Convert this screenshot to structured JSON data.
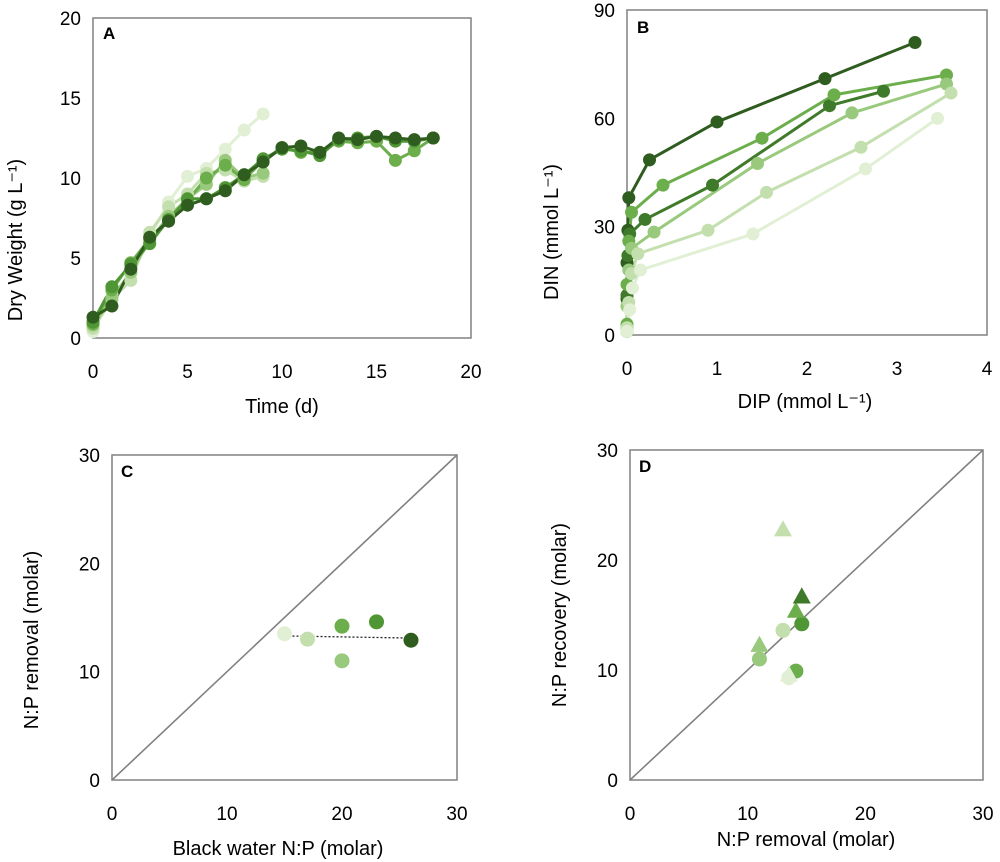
{
  "figure": {
    "palette": [
      "#2f5c1f",
      "#3f7a2a",
      "#4f9635",
      "#6dae4c",
      "#98c97c",
      "#c3dfae",
      "#e1f0d4"
    ]
  },
  "chart_data": [
    {
      "id": "A",
      "type": "line",
      "panel_label": "A",
      "xlabel": "Time (d)",
      "ylabel": "Dry Weight (g L⁻¹)",
      "xlim": [
        0,
        20
      ],
      "ylim": [
        0,
        20
      ],
      "xticks": [
        0,
        5,
        10,
        15,
        20
      ],
      "yticks": [
        0,
        5,
        10,
        15,
        20
      ],
      "series": [
        {
          "name": "series-1",
          "color": "#e1f0d4",
          "x": [
            0,
            1,
            2,
            3,
            4,
            5,
            6,
            7,
            8,
            9
          ],
          "y": [
            0.4,
            2.7,
            4.0,
            6.3,
            8.5,
            10.1,
            10.6,
            11.8,
            13.0,
            14.0
          ]
        },
        {
          "name": "series-2",
          "color": "#c3dfae",
          "x": [
            0,
            1,
            2,
            3,
            4,
            5,
            6,
            7,
            8,
            9
          ],
          "y": [
            0.6,
            2.4,
            3.6,
            6.6,
            8.2,
            9.0,
            10.3,
            10.5,
            9.8,
            10.1
          ]
        },
        {
          "name": "series-3",
          "color": "#98c97c",
          "x": [
            0,
            1,
            2,
            3,
            4,
            5,
            6,
            7,
            8,
            9
          ],
          "y": [
            0.8,
            2.5,
            4.1,
            6.1,
            7.6,
            8.7,
            9.6,
            11.1,
            10.0,
            10.3
          ]
        },
        {
          "name": "series-4",
          "color": "#6dae4c",
          "x": [
            0,
            1,
            2,
            3,
            4,
            5,
            6,
            7,
            8,
            9,
            10,
            11,
            12,
            13,
            14,
            15,
            16,
            17,
            18
          ],
          "y": [
            0.9,
            3.0,
            4.7,
            6.2,
            7.4,
            8.6,
            10.0,
            10.8,
            9.9,
            11.1,
            11.9,
            11.6,
            11.6,
            12.3,
            12.2,
            12.3,
            11.1,
            11.7,
            12.5
          ]
        },
        {
          "name": "series-5",
          "color": "#4f9635",
          "x": [
            0,
            1,
            2,
            3,
            4,
            5,
            6,
            7,
            8,
            9,
            10,
            11,
            12,
            13,
            14,
            15,
            16,
            17,
            18
          ],
          "y": [
            1.0,
            3.2,
            4.6,
            5.9,
            7.4,
            8.7,
            8.7,
            9.4,
            10.2,
            11.2,
            11.8,
            11.7,
            11.4,
            12.4,
            12.5,
            12.6,
            12.3,
            12.3,
            12.5
          ]
        },
        {
          "name": "series-6",
          "color": "#2f5c1f",
          "x": [
            0,
            1,
            2,
            3,
            4,
            5,
            6,
            7,
            8,
            9,
            10,
            11,
            12,
            13,
            14,
            15,
            16,
            17,
            18
          ],
          "y": [
            1.3,
            2.0,
            4.3,
            6.3,
            7.3,
            8.3,
            8.7,
            9.2,
            10.2,
            11.0,
            11.9,
            12.0,
            11.6,
            12.5,
            12.4,
            12.6,
            12.5,
            12.4,
            12.5
          ]
        }
      ]
    },
    {
      "id": "B",
      "type": "line",
      "panel_label": "B",
      "xlabel": "DIP (mmol L⁻¹)",
      "ylabel": "DIN (mmol L⁻¹)",
      "xlim": [
        0,
        4
      ],
      "ylim": [
        0,
        90
      ],
      "xticks": [
        0,
        1,
        2,
        3,
        4
      ],
      "yticks": [
        0,
        30,
        60,
        90
      ],
      "series": [
        {
          "name": "series-1",
          "color": "#2f5c1f",
          "x": [
            3.2,
            2.2,
            1.0,
            0.25,
            0.02,
            0.01,
            0.0,
            0.0,
            0.0
          ],
          "y": [
            81,
            71,
            59,
            48.5,
            38,
            29,
            20,
            10,
            1
          ]
        },
        {
          "name": "series-2",
          "color": "#3f7a2a",
          "x": [
            2.85,
            2.25,
            0.95,
            0.2,
            0.03,
            0.01,
            0.0,
            0.0
          ],
          "y": [
            67.5,
            63.5,
            41.5,
            32,
            28,
            22,
            11,
            2
          ]
        },
        {
          "name": "series-3",
          "color": "#6dae4c",
          "x": [
            3.55,
            2.3,
            1.5,
            0.4,
            0.05,
            0.02,
            0.0,
            0.0
          ],
          "y": [
            72,
            66.5,
            54.5,
            41.5,
            34,
            26,
            14,
            3
          ]
        },
        {
          "name": "series-4",
          "color": "#98c97c",
          "x": [
            3.55,
            2.5,
            1.45,
            0.3,
            0.05,
            0.02,
            0.0,
            0.0
          ],
          "y": [
            69.5,
            61.5,
            47.5,
            28.5,
            24,
            18,
            8,
            1
          ]
        },
        {
          "name": "series-5",
          "color": "#c3dfae",
          "x": [
            3.6,
            2.6,
            1.55,
            0.9,
            0.12,
            0.05,
            0.02,
            0.0
          ],
          "y": [
            67,
            52,
            39.5,
            29,
            22.5,
            17,
            9,
            2
          ]
        },
        {
          "name": "series-6",
          "color": "#e1f0d4",
          "x": [
            3.45,
            2.65,
            1.4,
            0.15,
            0.06,
            0.03,
            0.0
          ],
          "y": [
            60,
            46,
            28,
            18,
            13,
            7,
            1
          ]
        }
      ]
    },
    {
      "id": "C",
      "type": "scatter",
      "panel_label": "C",
      "xlabel": "Black water N:P (molar)",
      "ylabel": "N:P removal (molar)",
      "xlim": [
        0,
        30
      ],
      "ylim": [
        0,
        30
      ],
      "xticks": [
        0,
        10,
        20,
        30
      ],
      "yticks": [
        0,
        10,
        20,
        30
      ],
      "reference_line": "1:1",
      "trend_line": {
        "x": [
          15,
          26
        ],
        "y": [
          13.3,
          13.1
        ],
        "style": "dotted"
      },
      "points": [
        {
          "x": 15.0,
          "y": 13.5,
          "color": "#e1f0d4"
        },
        {
          "x": 17.0,
          "y": 13.0,
          "color": "#c3dfae"
        },
        {
          "x": 20.0,
          "y": 11.0,
          "color": "#98c97c"
        },
        {
          "x": 20.0,
          "y": 14.2,
          "color": "#6dae4c"
        },
        {
          "x": 23.0,
          "y": 14.6,
          "color": "#4f9635"
        },
        {
          "x": 26.0,
          "y": 12.9,
          "color": "#2f5c1f"
        }
      ]
    },
    {
      "id": "D",
      "type": "scatter",
      "panel_label": "D",
      "xlabel": "N:P removal (molar)",
      "ylabel": "N:P recovery (molar)",
      "xlim": [
        0,
        30
      ],
      "ylim": [
        0,
        30
      ],
      "xticks": [
        0,
        10,
        20,
        30
      ],
      "yticks": [
        0,
        10,
        20,
        30
      ],
      "reference_line": "1:1",
      "points": [
        {
          "x": 13.5,
          "y": 9.3,
          "color": "#e1f0d4",
          "shape": "circle"
        },
        {
          "x": 13.0,
          "y": 13.6,
          "color": "#c3dfae",
          "shape": "circle"
        },
        {
          "x": 11.0,
          "y": 11.0,
          "color": "#98c97c",
          "shape": "circle"
        },
        {
          "x": 14.1,
          "y": 9.9,
          "color": "#6dae4c",
          "shape": "circle"
        },
        {
          "x": 14.6,
          "y": 14.2,
          "color": "#4f9635",
          "shape": "circle"
        },
        {
          "x": 13.5,
          "y": 9.6,
          "color": "#e1f0d4",
          "shape": "triangle"
        },
        {
          "x": 13.0,
          "y": 22.8,
          "color": "#c3dfae",
          "shape": "triangle"
        },
        {
          "x": 11.0,
          "y": 12.3,
          "color": "#98c97c",
          "shape": "triangle"
        },
        {
          "x": 14.1,
          "y": 15.4,
          "color": "#6dae4c",
          "shape": "triangle"
        },
        {
          "x": 14.6,
          "y": 16.7,
          "color": "#3f7a2a",
          "shape": "triangle"
        }
      ]
    }
  ]
}
